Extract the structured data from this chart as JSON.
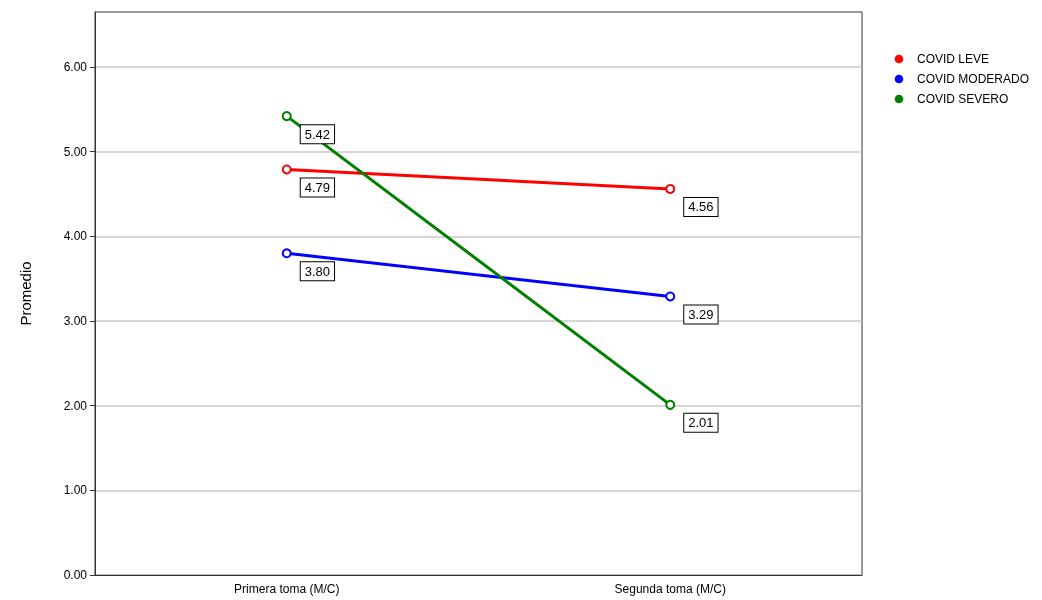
{
  "chart_data": {
    "type": "line",
    "ylabel": "Promedio",
    "categories": [
      "Primera toma (M/C)",
      "Segunda toma (M/C)"
    ],
    "series": [
      {
        "name": "COVID LEVE",
        "color": "#ff0000",
        "values": [
          4.79,
          4.56
        ],
        "value_labels": [
          "4.79",
          "4.56"
        ]
      },
      {
        "name": "COVID MODERADO",
        "color": "#0000ff",
        "values": [
          3.8,
          3.29
        ],
        "value_labels": [
          "3.80",
          "3.29"
        ]
      },
      {
        "name": "COVID SEVERO",
        "color": "#008000",
        "values": [
          5.42,
          2.01
        ],
        "value_labels": [
          "5.42",
          "2.01"
        ]
      }
    ],
    "ylim": [
      0,
      6.65
    ],
    "yticks": [
      {
        "value": 0,
        "label": "0.00"
      },
      {
        "value": 1,
        "label": "1.00"
      },
      {
        "value": 2,
        "label": "2.00"
      },
      {
        "value": 3,
        "label": "3.00"
      },
      {
        "value": 4,
        "label": "4.00"
      },
      {
        "value": 5,
        "label": "5.00"
      },
      {
        "value": 6,
        "label": "6.00"
      }
    ],
    "grid": "y",
    "legend": "top right",
    "marker": "circle",
    "line_style": "solid"
  }
}
